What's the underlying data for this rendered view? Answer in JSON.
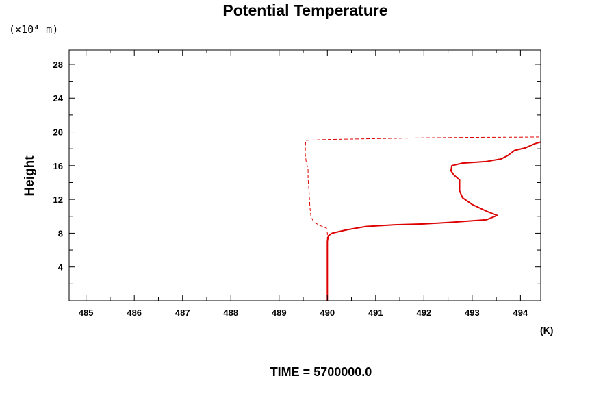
{
  "chart_data": {
    "type": "line",
    "title": "Potential Temperature",
    "ylabel": "Height",
    "y_scale_label": "(×10⁴ m)",
    "x_unit_label": "(K)",
    "footer": "TIME = 5700000.0",
    "xlim": [
      484.65,
      494.42
    ],
    "ylim": [
      0,
      29.7
    ],
    "x_ticks": [
      485,
      486,
      487,
      488,
      489,
      490,
      491,
      492,
      493,
      494
    ],
    "y_ticks": [
      4,
      8,
      12,
      16,
      20,
      24,
      28
    ],
    "grid": false,
    "colors": {
      "series": "#dd0000",
      "axes": "#000000"
    },
    "series": [
      {
        "style": "solid",
        "points": [
          [
            490.0,
            0
          ],
          [
            490.0,
            4.0
          ],
          [
            490.0,
            7.0
          ],
          [
            490.02,
            7.7
          ],
          [
            490.1,
            8.0
          ],
          [
            490.4,
            8.4
          ],
          [
            490.8,
            8.8
          ],
          [
            491.4,
            9.0
          ],
          [
            492.0,
            9.1
          ],
          [
            492.6,
            9.3
          ],
          [
            493.3,
            9.6
          ],
          [
            493.52,
            10.1
          ],
          [
            493.3,
            10.6
          ],
          [
            493.0,
            11.4
          ],
          [
            492.8,
            12.2
          ],
          [
            492.74,
            13.0
          ],
          [
            492.74,
            14.3
          ],
          [
            492.62,
            14.9
          ],
          [
            492.56,
            15.4
          ],
          [
            492.58,
            16.0
          ],
          [
            492.8,
            16.3
          ],
          [
            493.3,
            16.5
          ],
          [
            493.6,
            16.8
          ],
          [
            493.74,
            17.2
          ],
          [
            493.88,
            17.8
          ],
          [
            494.1,
            18.1
          ],
          [
            494.3,
            18.6
          ],
          [
            494.42,
            18.8
          ]
        ]
      },
      {
        "style": "dashed",
        "points": [
          [
            490.0,
            0
          ],
          [
            490.0,
            4.0
          ],
          [
            490.0,
            7.2
          ],
          [
            490.0,
            8.0
          ],
          [
            489.98,
            8.6
          ],
          [
            489.85,
            8.9
          ],
          [
            489.72,
            9.3
          ],
          [
            489.66,
            10.0
          ],
          [
            489.64,
            11.0
          ],
          [
            489.62,
            13.0
          ],
          [
            489.6,
            14.5
          ],
          [
            489.6,
            15.5
          ],
          [
            489.56,
            16.5
          ],
          [
            489.54,
            17.4
          ],
          [
            489.55,
            19.0
          ],
          [
            490.0,
            19.1
          ],
          [
            491.0,
            19.2
          ],
          [
            492.0,
            19.3
          ],
          [
            493.0,
            19.35
          ],
          [
            494.0,
            19.38
          ],
          [
            494.42,
            19.4
          ]
        ]
      }
    ]
  }
}
